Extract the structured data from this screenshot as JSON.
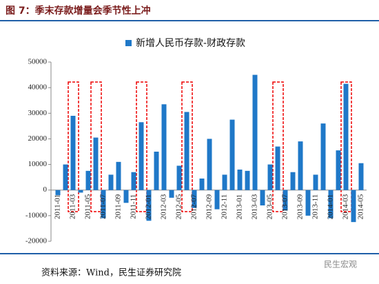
{
  "chart_data": {
    "type": "bar",
    "title": "图 7：季末存款增量会季节性上冲",
    "source": "资料来源：Wind，民生证券研究院",
    "watermark": "民生宏观",
    "series": [
      {
        "name": "新增人民币存款-财政存款",
        "color": "#1f78c8",
        "values": [
          -2000,
          10000,
          29000,
          -1000,
          7500,
          20500,
          -11000,
          6000,
          11000,
          -5000,
          7000,
          26500,
          -12000,
          15000,
          33500,
          -3000,
          9500,
          30500,
          -7000,
          4500,
          20000,
          -7500,
          6000,
          27500,
          8000,
          7500,
          45000,
          -6000,
          10000,
          17000,
          -8000,
          7000,
          19000,
          -10000,
          6000,
          26000,
          -11000,
          15500,
          41500,
          -12500,
          10500
        ]
      }
    ],
    "categories": [
      "2011-01",
      null,
      "2011-03",
      null,
      "2011-05",
      null,
      "2011-07",
      null,
      "2011-09",
      null,
      "2011-11",
      null,
      "2012-01",
      null,
      "2012-03",
      null,
      "2012-05",
      null,
      "2012-07",
      null,
      "2012-09",
      null,
      "2012-11",
      null,
      "2013-01",
      null,
      "2013-03",
      null,
      "2013-05",
      null,
      "2013-07",
      null,
      "2013-09",
      null,
      "2013-11",
      null,
      "2014-01",
      null,
      "2014-03",
      null,
      "2014-05"
    ],
    "ylim": [
      -20000,
      50000
    ],
    "yticks": [
      -20000,
      -10000,
      0,
      10000,
      20000,
      30000,
      40000,
      50000
    ]
  }
}
